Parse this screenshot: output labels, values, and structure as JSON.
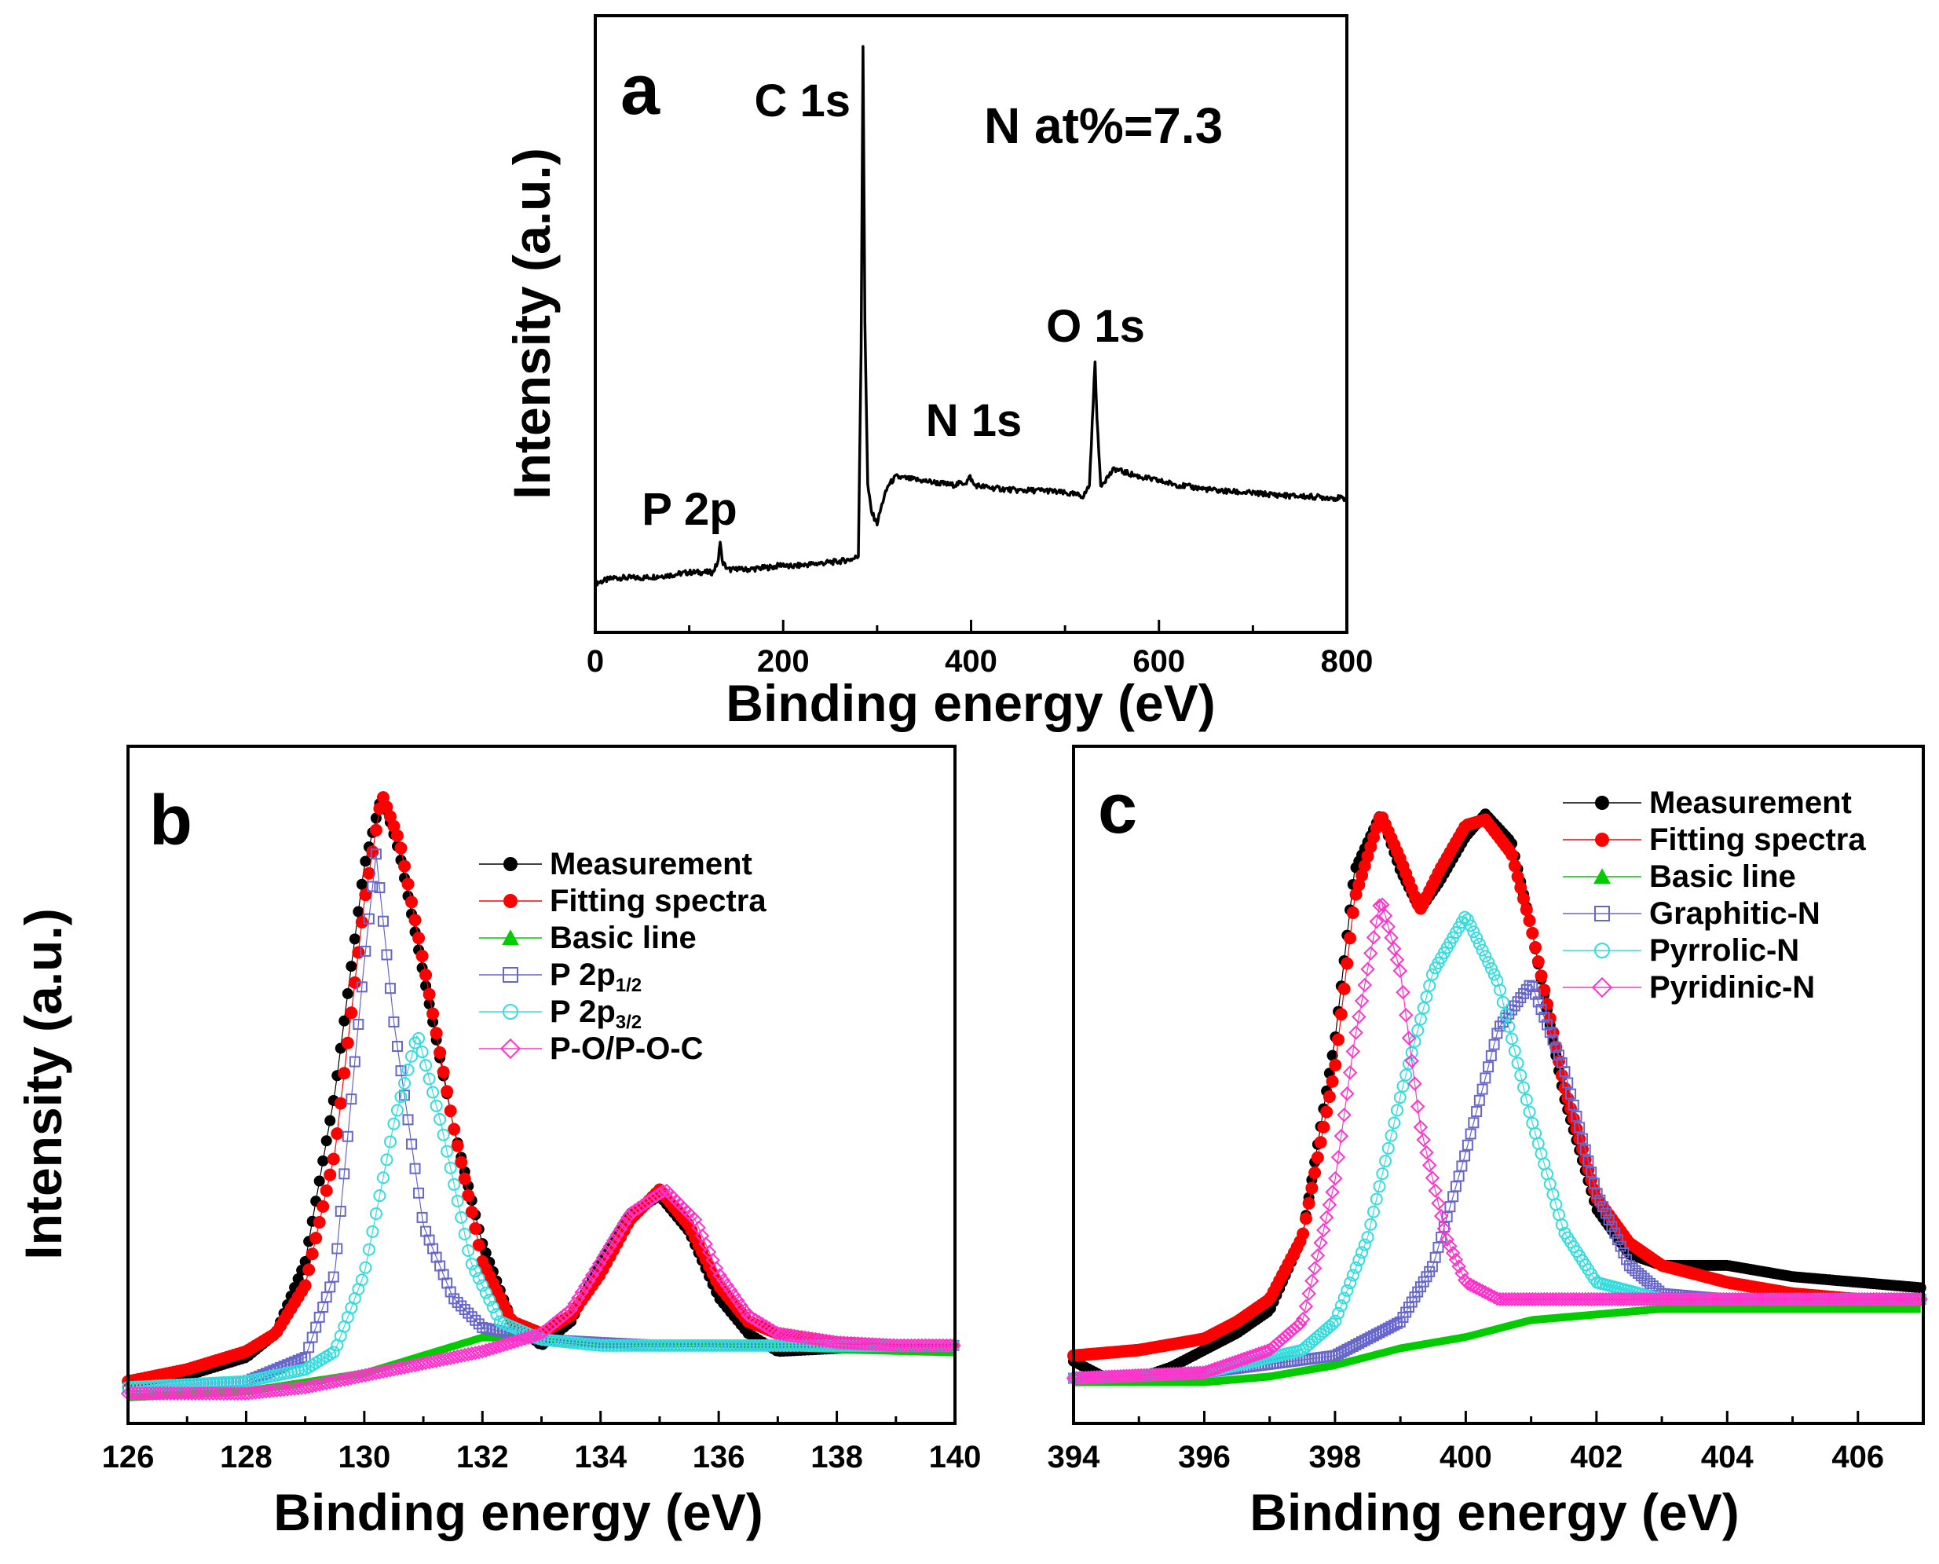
{
  "chart_data": [
    {
      "panel": "a",
      "type": "line",
      "xlabel": "Binding energy (eV)",
      "ylabel": "Intensity (a.u.)",
      "xlim": [
        0,
        800
      ],
      "x_ticks": [
        "0",
        "200",
        "400",
        "600",
        "800"
      ],
      "y_ticks": [],
      "grid": false,
      "annotations": [
        {
          "text": "C 1s",
          "x": 285
        },
        {
          "text": "N 1s",
          "x": 400
        },
        {
          "text": "O 1s",
          "x": 532
        },
        {
          "text": "P 2p",
          "x": 133
        },
        {
          "text": "N at%=7.3"
        }
      ],
      "series": [
        {
          "color": "#000000",
          "x": [
            0,
            20,
            50,
            80,
            100,
            125,
            131,
            133,
            135,
            141,
            150,
            152,
            154,
            160,
            190,
            200,
            205,
            230,
            260,
            275,
            280,
            283,
            285,
            287,
            290,
            294,
            300,
            306,
            312,
            320,
            340,
            360,
            380,
            395,
            399,
            403,
            420,
            450,
            480,
            500,
            520,
            526,
            530,
            532,
            534,
            538,
            543,
            548,
            553,
            560,
            580,
            620,
            660,
            700,
            740,
            770,
            800
          ],
          "y": [
            0.02,
            0.03,
            0.03,
            0.035,
            0.04,
            0.04,
            0.06,
            0.1,
            0.06,
            0.045,
            0.045,
            0.05,
            0.045,
            0.045,
            0.05,
            0.055,
            0.05,
            0.055,
            0.06,
            0.065,
            0.07,
            0.45,
            1.0,
            0.5,
            0.2,
            0.15,
            0.13,
            0.17,
            0.2,
            0.215,
            0.21,
            0.205,
            0.2,
            0.205,
            0.215,
            0.2,
            0.195,
            0.19,
            0.19,
            0.185,
            0.18,
            0.2,
            0.35,
            0.43,
            0.32,
            0.2,
            0.21,
            0.22,
            0.23,
            0.225,
            0.215,
            0.2,
            0.19,
            0.185,
            0.18,
            0.178,
            0.175
          ]
        }
      ]
    },
    {
      "panel": "b",
      "type": "line",
      "xlabel": "Binding energy (eV)",
      "ylabel": "Intensity (a.u.)",
      "xlim": [
        126,
        140
      ],
      "x_ticks": [
        "126",
        "128",
        "130",
        "132",
        "134",
        "136",
        "138",
        "140"
      ],
      "y_ticks": [],
      "grid": false,
      "legend_position": "top-right",
      "legend": [
        {
          "label": "Measurement",
          "color": "#000000",
          "marker": "filled-circle"
        },
        {
          "label": "Fitting spectra",
          "color": "#ff0000",
          "marker": "filled-circle"
        },
        {
          "label": "Basic line",
          "color": "#00cc00",
          "marker": "filled-triangle"
        },
        {
          "label": "P 2p",
          "sub": "1/2",
          "color": "#6666cc",
          "marker": "open-square"
        },
        {
          "label": "P 2p",
          "sub": "3/2",
          "color": "#33dddd",
          "marker": "open-circle"
        },
        {
          "label": "P-O/P-O-C",
          "color": "#ff33cc",
          "marker": "open-diamond"
        }
      ],
      "series": [
        {
          "name": "Measurement",
          "color": "#000000",
          "x": [
            126,
            127,
            128,
            128.5,
            129,
            129.5,
            130,
            130.3,
            130.6,
            131,
            131.5,
            132,
            132.5,
            133,
            133.5,
            134,
            134.5,
            135,
            135.5,
            136,
            136.5,
            137,
            138,
            139,
            140
          ],
          "y": [
            0.02,
            0.03,
            0.06,
            0.1,
            0.22,
            0.5,
            0.88,
            1.0,
            0.9,
            0.7,
            0.45,
            0.25,
            0.12,
            0.08,
            0.12,
            0.22,
            0.3,
            0.33,
            0.27,
            0.16,
            0.1,
            0.07,
            0.075,
            0.08,
            0.08
          ]
        },
        {
          "name": "Fitting spectra",
          "color": "#ff0000",
          "x": [
            126,
            127,
            128,
            128.5,
            129,
            129.5,
            130,
            130.3,
            130.6,
            131,
            131.5,
            132,
            132.5,
            133,
            133.5,
            134,
            134.5,
            135,
            135.5,
            136,
            136.5,
            137,
            138,
            139,
            140
          ],
          "y": [
            0.02,
            0.04,
            0.07,
            0.1,
            0.18,
            0.4,
            0.82,
            1.0,
            0.92,
            0.72,
            0.45,
            0.22,
            0.12,
            0.1,
            0.13,
            0.2,
            0.29,
            0.34,
            0.28,
            0.18,
            0.12,
            0.1,
            0.085,
            0.08,
            0.08
          ]
        },
        {
          "name": "Basic line",
          "color": "#00cc00",
          "x": [
            126,
            128,
            130,
            131,
            132,
            133,
            134,
            136,
            138,
            140
          ],
          "y": [
            0.0,
            0.01,
            0.04,
            0.07,
            0.1,
            0.1,
            0.09,
            0.09,
            0.08,
            0.075
          ]
        },
        {
          "name": "P 2p1/2",
          "color": "#6666cc",
          "x": [
            126,
            128,
            129,
            129.5,
            130,
            130.2,
            130.5,
            131,
            131.5,
            132,
            132.5,
            133,
            135,
            138,
            140
          ],
          "y": [
            0.01,
            0.02,
            0.06,
            0.2,
            0.72,
            0.9,
            0.62,
            0.28,
            0.16,
            0.11,
            0.1,
            0.09,
            0.08,
            0.08,
            0.08
          ]
        },
        {
          "name": "P 2p3/2",
          "color": "#33dddd",
          "x": [
            126,
            128,
            129,
            129.5,
            130,
            130.5,
            130.9,
            131.3,
            131.8,
            132.3,
            133,
            134,
            136,
            138,
            140
          ],
          "y": [
            0.01,
            0.02,
            0.04,
            0.07,
            0.2,
            0.45,
            0.6,
            0.45,
            0.22,
            0.12,
            0.09,
            0.08,
            0.08,
            0.08,
            0.08
          ]
        },
        {
          "name": "P-O/P-O-C",
          "color": "#ff33cc",
          "x": [
            126,
            128,
            129,
            130,
            131,
            132,
            133,
            133.5,
            134,
            134.5,
            135.1,
            135.6,
            136,
            136.5,
            137,
            138,
            139,
            140
          ],
          "y": [
            0.0,
            0.0,
            0.01,
            0.03,
            0.05,
            0.07,
            0.1,
            0.14,
            0.22,
            0.3,
            0.34,
            0.29,
            0.2,
            0.13,
            0.1,
            0.085,
            0.08,
            0.08
          ]
        }
      ]
    },
    {
      "panel": "c",
      "type": "line",
      "xlabel": "Binding energy (eV)",
      "xlim": [
        394,
        407
      ],
      "x_ticks": [
        "394",
        "396",
        "398",
        "400",
        "402",
        "404",
        "406"
      ],
      "y_ticks": [],
      "grid": false,
      "legend_position": "top-right",
      "legend": [
        {
          "label": "Measurement",
          "color": "#000000",
          "marker": "filled-circle"
        },
        {
          "label": "Fitting spectra",
          "color": "#ff0000",
          "marker": "filled-circle"
        },
        {
          "label": "Basic line",
          "color": "#00cc00",
          "marker": "filled-triangle"
        },
        {
          "label": "Graphitic-N",
          "color": "#6666cc",
          "marker": "open-square"
        },
        {
          "label": "Pyrrolic-N",
          "color": "#33dddd",
          "marker": "open-circle"
        },
        {
          "label": "Pyridinic-N",
          "color": "#ff33cc",
          "marker": "open-diamond"
        }
      ],
      "series": [
        {
          "name": "Measurement",
          "color": "#000000",
          "x": [
            394,
            394.5,
            395,
            395.5,
            396,
            396.5,
            397,
            397.5,
            398,
            398.3,
            398.7,
            399,
            399.3,
            399.6,
            400,
            400.3,
            400.7,
            401,
            401.5,
            402,
            402.5,
            403,
            404,
            405,
            406,
            407
          ],
          "y": [
            0.03,
            0.0,
            0.0,
            0.02,
            0.05,
            0.08,
            0.12,
            0.25,
            0.6,
            0.9,
            1.0,
            0.9,
            0.83,
            0.88,
            0.96,
            1.0,
            0.95,
            0.8,
            0.5,
            0.3,
            0.22,
            0.2,
            0.2,
            0.18,
            0.17,
            0.16
          ]
        },
        {
          "name": "Fitting spectra",
          "color": "#ff0000",
          "x": [
            394,
            395,
            396,
            396.5,
            397,
            397.5,
            398,
            398.3,
            398.7,
            399,
            399.3,
            399.6,
            400,
            400.3,
            400.7,
            401,
            401.5,
            402,
            402.5,
            403,
            404,
            405,
            406,
            407
          ],
          "y": [
            0.04,
            0.05,
            0.07,
            0.1,
            0.14,
            0.25,
            0.55,
            0.85,
            1.0,
            0.92,
            0.83,
            0.9,
            0.98,
            0.99,
            0.93,
            0.8,
            0.52,
            0.32,
            0.24,
            0.2,
            0.17,
            0.15,
            0.14,
            0.14
          ]
        },
        {
          "name": "Basic line",
          "color": "#00cc00",
          "x": [
            394,
            396,
            397,
            398,
            399,
            400,
            401,
            402,
            403,
            404,
            407
          ],
          "y": [
            0.0,
            0.0,
            0.01,
            0.03,
            0.06,
            0.08,
            0.11,
            0.12,
            0.13,
            0.13,
            0.13
          ]
        },
        {
          "name": "Graphitic-N",
          "color": "#6666cc",
          "x": [
            394,
            396,
            398,
            399,
            399.5,
            400,
            400.5,
            401,
            401.5,
            402,
            402.5,
            403,
            404,
            407
          ],
          "y": [
            0.0,
            0.01,
            0.04,
            0.1,
            0.2,
            0.4,
            0.62,
            0.7,
            0.55,
            0.33,
            0.2,
            0.15,
            0.14,
            0.14
          ]
        },
        {
          "name": "Pyrrolic-N",
          "color": "#33dddd",
          "x": [
            394,
            396,
            397.5,
            398,
            398.5,
            399,
            399.5,
            400,
            400.5,
            401,
            401.5,
            402,
            403,
            404,
            407
          ],
          "y": [
            0.0,
            0.01,
            0.05,
            0.1,
            0.25,
            0.5,
            0.72,
            0.82,
            0.7,
            0.46,
            0.26,
            0.17,
            0.14,
            0.14,
            0.14
          ]
        },
        {
          "name": "Pyridinic-N",
          "color": "#ff33cc",
          "x": [
            394,
            396,
            397,
            397.5,
            398,
            398.3,
            398.7,
            399,
            399.3,
            399.7,
            400,
            400.5,
            401,
            402,
            404,
            407
          ],
          "y": [
            0.0,
            0.01,
            0.05,
            0.1,
            0.35,
            0.6,
            0.85,
            0.72,
            0.45,
            0.25,
            0.17,
            0.14,
            0.14,
            0.14,
            0.14,
            0.14
          ]
        }
      ]
    }
  ]
}
